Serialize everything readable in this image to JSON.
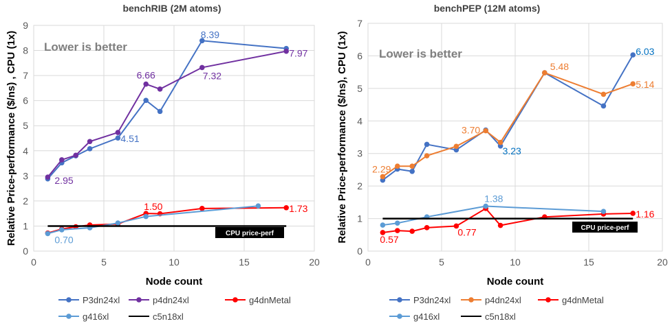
{
  "chart_data": [
    {
      "type": "line",
      "title": "benchRIB (2M atoms)",
      "xlabel": "Node count",
      "ylabel": "Relative Price-performance ($/ns) , CPU (1x)",
      "xlim": [
        0,
        20
      ],
      "ylim": [
        0,
        9
      ],
      "xticks": [
        "0",
        "5",
        "10",
        "15",
        "20"
      ],
      "yticks": [
        "0",
        "1",
        "2",
        "3",
        "4",
        "5",
        "6",
        "7",
        "8",
        "9"
      ],
      "grid": true,
      "legend_position": "bottom",
      "annotation": "Lower is better",
      "baseline_label": "CPU price-perf",
      "series": [
        {
          "name": "P3dn24xl",
          "color": "#4472C4",
          "x": [
            1,
            2,
            3,
            4,
            6,
            8,
            9,
            12,
            18
          ],
          "y": [
            2.88,
            3.52,
            3.8,
            4.08,
            4.51,
            6.01,
            5.57,
            8.39,
            8.08
          ]
        },
        {
          "name": "p4dn24xl",
          "color": "#7030A0",
          "x": [
            1,
            2,
            3,
            4,
            6,
            8,
            9,
            12,
            18
          ],
          "y": [
            2.95,
            3.64,
            3.82,
            4.37,
            4.73,
            6.66,
            6.46,
            7.32,
            7.97
          ]
        },
        {
          "name": "g4dnMetal",
          "color": "#FF0000",
          "x": [
            1,
            2,
            3,
            4,
            6,
            8,
            9,
            12,
            18
          ],
          "y": [
            0.72,
            0.88,
            0.97,
            1.04,
            1.08,
            1.5,
            1.49,
            1.7,
            1.73
          ]
        },
        {
          "name": "g416xl",
          "color": "#5B9BD5",
          "x": [
            1,
            2,
            4,
            6,
            8,
            16
          ],
          "y": [
            0.7,
            0.85,
            0.93,
            1.12,
            1.38,
            1.8
          ]
        },
        {
          "name": "c5n18xl",
          "color": "#000000",
          "x": [
            1,
            18
          ],
          "y": [
            1,
            1
          ],
          "markers": false
        }
      ],
      "data_labels": [
        {
          "series": 0,
          "point": 7,
          "text": "8.39",
          "color": "#4472C4"
        },
        {
          "series": 1,
          "point": 8,
          "text": "7.97",
          "color": "#7030A0"
        },
        {
          "series": 1,
          "point": 5,
          "text": "6.66",
          "color": "#7030A0"
        },
        {
          "series": 1,
          "point": 7,
          "text": "7.32",
          "color": "#7030A0"
        },
        {
          "series": 0,
          "point": 4,
          "text": "4.51",
          "color": "#4472C4"
        },
        {
          "series": 1,
          "point": 0,
          "text": "2.95",
          "color": "#7030A0"
        },
        {
          "series": 2,
          "point": 5,
          "text": "1.50",
          "color": "#FF0000"
        },
        {
          "series": 2,
          "point": 8,
          "text": "1.73",
          "color": "#FF0000"
        },
        {
          "series": 3,
          "point": 0,
          "text": "0.70",
          "color": "#5B9BD5"
        }
      ]
    },
    {
      "type": "line",
      "title": "benchPEP (12M atoms)",
      "xlabel": "Node count",
      "ylabel": "Relative Price-performance ($/ns), CPU (1x)",
      "xlim": [
        0,
        20
      ],
      "ylim": [
        0,
        7
      ],
      "xticks": [
        "0",
        "5",
        "10",
        "15",
        "20"
      ],
      "yticks": [
        "0",
        "1",
        "2",
        "3",
        "4",
        "5",
        "6",
        "7"
      ],
      "grid": true,
      "legend_position": "bottom",
      "annotation": "Lower is better",
      "baseline_label": "CPU price-perf",
      "series": [
        {
          "name": "P3dn24xl",
          "color": "#4472C4",
          "x": [
            1,
            2,
            3,
            4,
            6,
            8,
            9,
            12,
            16,
            18
          ],
          "y": [
            2.18,
            2.52,
            2.45,
            3.28,
            3.11,
            3.72,
            3.23,
            5.48,
            4.46,
            6.03
          ]
        },
        {
          "name": "p4dn24xl",
          "color": "#ED7D31",
          "x": [
            1,
            2,
            3,
            4,
            6,
            8,
            9,
            12,
            16,
            18
          ],
          "y": [
            2.29,
            2.61,
            2.61,
            2.93,
            3.22,
            3.7,
            3.34,
            5.48,
            4.82,
            5.14
          ]
        },
        {
          "name": "g4dnMetal",
          "color": "#FF0000",
          "x": [
            1,
            2,
            3,
            4,
            6,
            8,
            9,
            12,
            16,
            18
          ],
          "y": [
            0.57,
            0.63,
            0.61,
            0.72,
            0.77,
            1.31,
            0.79,
            1.05,
            1.14,
            1.16
          ]
        },
        {
          "name": "g416xl",
          "color": "#5B9BD5",
          "x": [
            1,
            2,
            4,
            8,
            16
          ],
          "y": [
            0.8,
            0.86,
            1.05,
            1.38,
            1.22
          ]
        },
        {
          "name": "c5n18xl",
          "color": "#000000",
          "x": [
            1,
            18
          ],
          "y": [
            1,
            1
          ],
          "markers": false
        }
      ],
      "data_labels": [
        {
          "series": 0,
          "point": 9,
          "text": "6.03",
          "color": "#0070C0"
        },
        {
          "series": 1,
          "point": 7,
          "text": "5.48",
          "color": "#ED7D31"
        },
        {
          "series": 1,
          "point": 9,
          "text": "5.14",
          "color": "#ED7D31"
        },
        {
          "series": 1,
          "point": 5,
          "text": "3.70",
          "color": "#ED7D31"
        },
        {
          "series": 0,
          "point": 6,
          "text": "3.23",
          "color": "#0070C0"
        },
        {
          "series": 1,
          "point": 0,
          "text": "2.29",
          "color": "#ED7D31"
        },
        {
          "series": 3,
          "point": 3,
          "text": "1.38",
          "color": "#5B9BD5"
        },
        {
          "series": 2,
          "point": 9,
          "text": "1.16",
          "color": "#FF0000"
        },
        {
          "series": 2,
          "point": 0,
          "text": "0.57",
          "color": "#FF0000"
        },
        {
          "series": 2,
          "point": 4,
          "text": "0.77",
          "color": "#FF0000"
        }
      ]
    }
  ]
}
